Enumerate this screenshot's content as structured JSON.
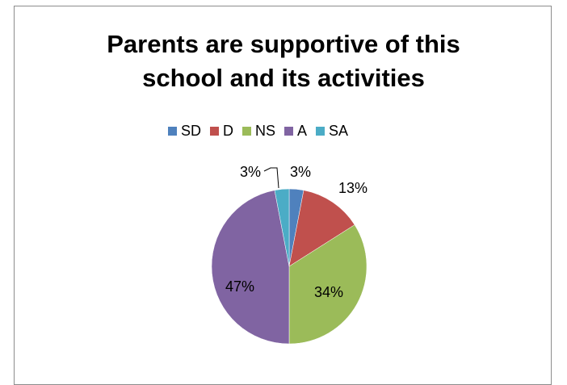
{
  "chart_data": {
    "type": "pie",
    "title_lines": [
      "Parents are supportive of this",
      "school and its activities"
    ],
    "categories": [
      "SD",
      "D",
      "NS",
      "A",
      "SA"
    ],
    "values": [
      3,
      13,
      34,
      47,
      3
    ],
    "data_labels": [
      "3%",
      "13%",
      "34%",
      "47%",
      "3%"
    ],
    "colors": [
      "#4f81bd",
      "#c0504d",
      "#9bbb59",
      "#8064a2",
      "#4bacc6"
    ],
    "legend_position": "top"
  }
}
